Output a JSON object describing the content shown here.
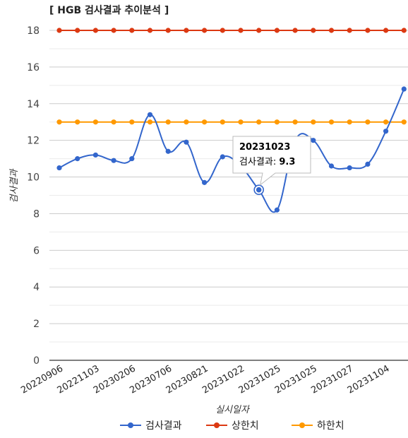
{
  "chart_data": {
    "type": "line",
    "title": "[ HGB 검사결과 추이분석 ]",
    "xlabel": "실시일자",
    "ylabel": "검사결과",
    "ylim": [
      0,
      18
    ],
    "yticks": [
      0,
      2,
      4,
      6,
      8,
      10,
      12,
      14,
      16,
      18
    ],
    "grid": true,
    "legend_position": "bottom",
    "x_tick_labels": [
      "20220906",
      "20221103",
      "20230206",
      "20230706",
      "20230821",
      "20231022",
      "20231025",
      "20231025",
      "20231027",
      "20231104"
    ],
    "series": [
      {
        "name": "검사결과",
        "color": "#3366cc",
        "smooth": true,
        "values": [
          10.5,
          11.0,
          11.2,
          10.9,
          11.0,
          13.4,
          11.4,
          11.9,
          9.7,
          11.1,
          10.6,
          9.3,
          8.2,
          12.0,
          12.0,
          10.6,
          10.5,
          10.7,
          12.5,
          14.8
        ]
      },
      {
        "name": "상한치",
        "color": "#dc3912",
        "smooth": false,
        "values": [
          18,
          18,
          18,
          18,
          18,
          18,
          18,
          18,
          18,
          18,
          18,
          18,
          18,
          18,
          18,
          18,
          18,
          18,
          18,
          18
        ]
      },
      {
        "name": "하한치",
        "color": "#ff9900",
        "smooth": false,
        "values": [
          13,
          13,
          13,
          13,
          13,
          13,
          13,
          13,
          13,
          13,
          13,
          13,
          13,
          13,
          13,
          13,
          13,
          13,
          13,
          13
        ]
      }
    ],
    "tooltip": {
      "date": "20231023",
      "label": "검사결과:",
      "value": "9.3",
      "point_index": 11
    }
  }
}
